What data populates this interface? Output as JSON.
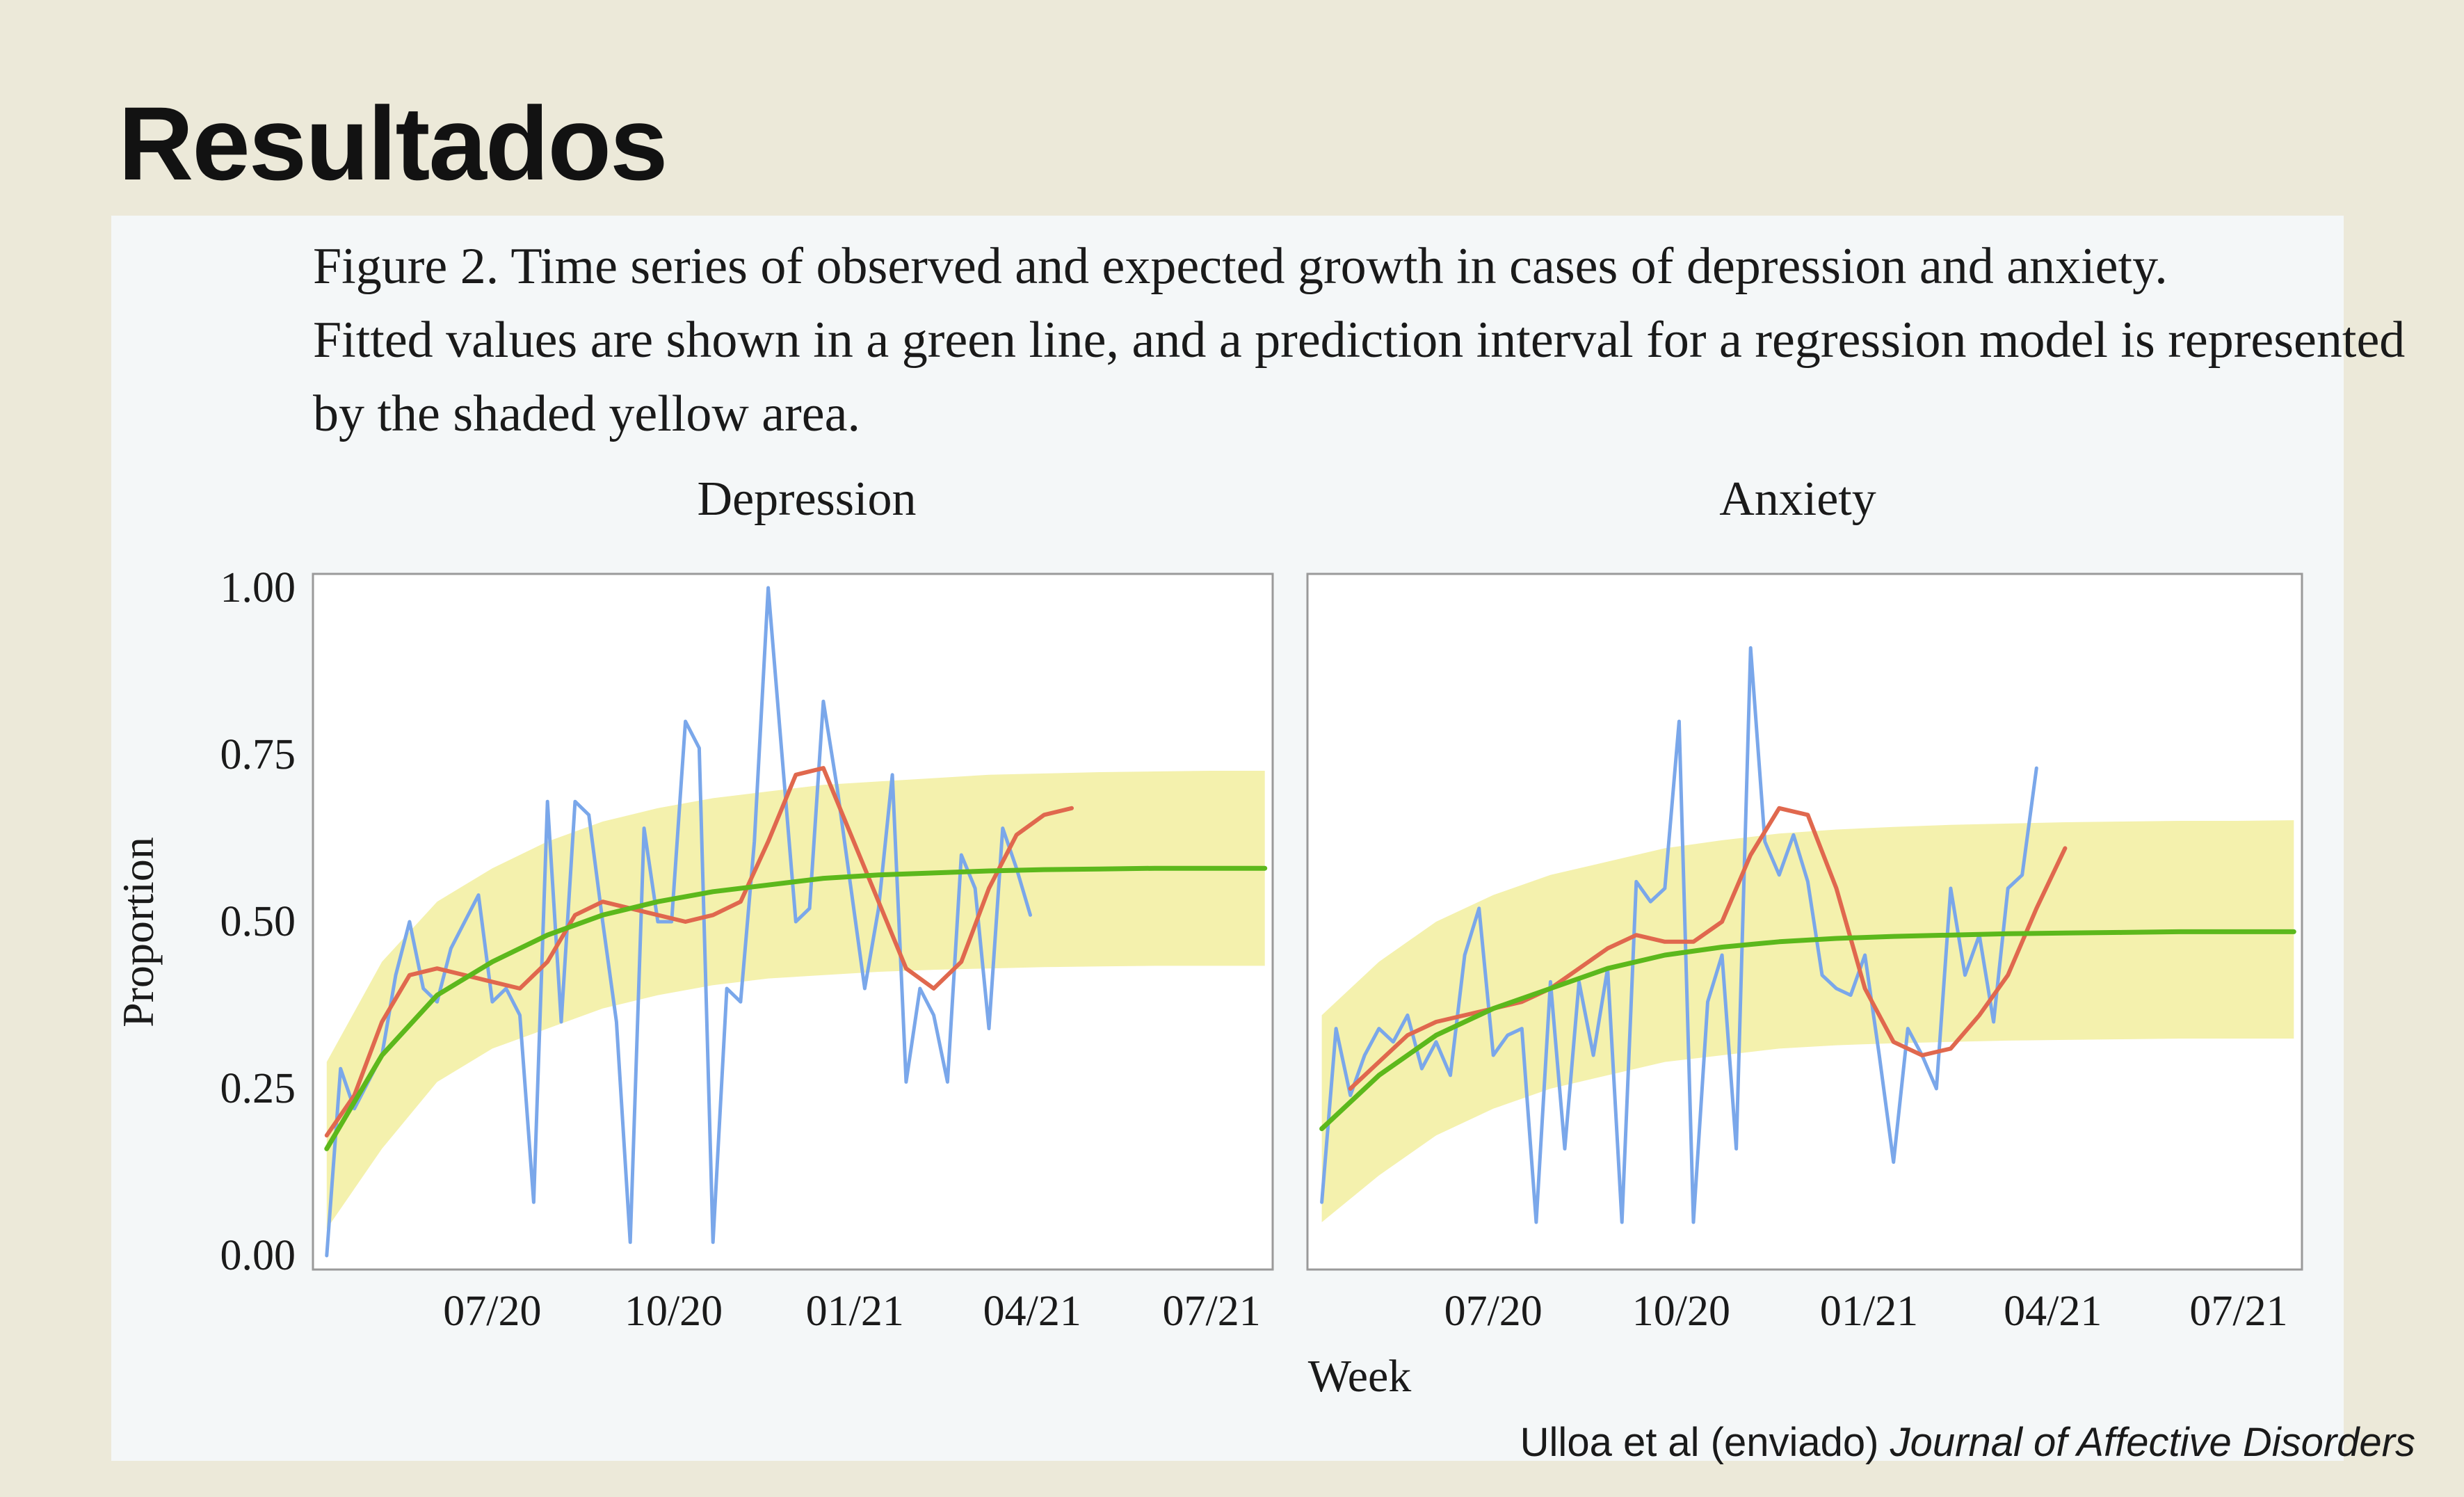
{
  "slide": {
    "title": "Resultados",
    "caption": [
      "Figure 2. Time series of observed and expected growth in cases of depression and anxiety.",
      "Fitted values are shown in a green line, and a prediction interval for a regression model is represented",
      "by the shaded yellow area."
    ],
    "citation_authors": "Ulloa et al (enviado) ",
    "citation_journal": "Journal of Affective Disorders"
  },
  "colors": {
    "observed": "#7aa7ea",
    "smoothed": "#e0684e",
    "fitted": "#5cb81c",
    "interval": "#f3efa4"
  },
  "chart_data": {
    "type": "line",
    "xlabel": "Week",
    "ylabel": "Proportion",
    "ylim": [
      0,
      1
    ],
    "yticks": [
      "0.00",
      "0.25",
      "0.50",
      "0.75",
      "1.00"
    ],
    "xticks": [
      "07/20",
      "10/20",
      "01/21",
      "04/21",
      "07/21"
    ],
    "xlim": [
      "2020-04-01",
      "2021-08-01"
    ],
    "legend": "none",
    "panels": [
      {
        "title": "Depression",
        "observed": {
          "dates": [
            "2020-04-08",
            "2020-04-15",
            "2020-04-22",
            "2020-04-29",
            "2020-05-06",
            "2020-05-13",
            "2020-05-20",
            "2020-05-27",
            "2020-06-03",
            "2020-06-10",
            "2020-06-17",
            "2020-06-24",
            "2020-07-01",
            "2020-07-08",
            "2020-07-15",
            "2020-07-22",
            "2020-07-29",
            "2020-08-05",
            "2020-08-12",
            "2020-08-19",
            "2020-08-26",
            "2020-09-02",
            "2020-09-09",
            "2020-09-16",
            "2020-09-23",
            "2020-09-30",
            "2020-10-07",
            "2020-10-14",
            "2020-10-21",
            "2020-10-28",
            "2020-11-04",
            "2020-11-11",
            "2020-11-18",
            "2020-11-25",
            "2020-12-02",
            "2020-12-09",
            "2020-12-16",
            "2020-12-23",
            "2020-12-30",
            "2021-01-06",
            "2021-01-13",
            "2021-01-20",
            "2021-01-27",
            "2021-02-03",
            "2021-02-10",
            "2021-02-17",
            "2021-02-24",
            "2021-03-03",
            "2021-03-10",
            "2021-03-17",
            "2021-03-24",
            "2021-03-31",
            "2021-04-07",
            "2021-04-14",
            "2021-04-21",
            "2021-04-28",
            "2021-05-05",
            "2021-05-12"
          ],
          "values": [
            0.0,
            0.28,
            0.22,
            0.26,
            0.3,
            0.42,
            0.5,
            0.4,
            0.38,
            0.46,
            0.5,
            0.54,
            0.38,
            0.4,
            0.36,
            0.08,
            0.68,
            0.35,
            0.68,
            0.66,
            0.5,
            0.35,
            0.02,
            0.64,
            0.5,
            0.5,
            0.8,
            0.76,
            0.02,
            0.4,
            0.38,
            0.62,
            1.0,
            0.75,
            0.5,
            0.52,
            0.83,
            0.7,
            0.55,
            0.4,
            0.52,
            0.72,
            0.26,
            0.4,
            0.36,
            0.26,
            0.6,
            0.55,
            0.34,
            0.64,
            0.58,
            0.51,
            null,
            null,
            null,
            null,
            null,
            null
          ]
        },
        "smoothed": {
          "dates": [
            "2020-04-08",
            "2020-04-22",
            "2020-05-06",
            "2020-05-20",
            "2020-06-03",
            "2020-06-17",
            "2020-07-01",
            "2020-07-15",
            "2020-07-29",
            "2020-08-12",
            "2020-08-26",
            "2020-09-09",
            "2020-09-23",
            "2020-10-07",
            "2020-10-21",
            "2020-11-04",
            "2020-11-18",
            "2020-12-02",
            "2020-12-16",
            "2020-12-30",
            "2021-01-13",
            "2021-01-27",
            "2021-02-10",
            "2021-02-24",
            "2021-03-10",
            "2021-03-24",
            "2021-04-07",
            "2021-04-21"
          ],
          "values": [
            0.18,
            0.24,
            0.35,
            0.42,
            0.43,
            0.42,
            0.41,
            0.4,
            0.44,
            0.51,
            0.53,
            0.52,
            0.51,
            0.5,
            0.51,
            0.53,
            0.62,
            0.72,
            0.73,
            0.63,
            0.53,
            0.43,
            0.4,
            0.44,
            0.55,
            0.63,
            0.66,
            0.67
          ]
        },
        "fitted": {
          "dates": [
            "2020-04-08",
            "2020-05-06",
            "2020-06-03",
            "2020-07-01",
            "2020-07-29",
            "2020-08-26",
            "2020-09-23",
            "2020-10-21",
            "2020-11-18",
            "2020-12-16",
            "2021-01-13",
            "2021-02-10",
            "2021-03-10",
            "2021-04-07",
            "2021-05-05",
            "2021-06-02",
            "2021-06-30",
            "2021-07-28"
          ],
          "values": [
            0.16,
            0.3,
            0.39,
            0.44,
            0.48,
            0.51,
            0.53,
            0.545,
            0.555,
            0.565,
            0.57,
            0.573,
            0.576,
            0.578,
            0.579,
            0.58,
            0.58,
            0.58
          ]
        },
        "interval_lower": [
          0.04,
          0.16,
          0.26,
          0.31,
          0.34,
          0.37,
          0.39,
          0.405,
          0.415,
          0.42,
          0.425,
          0.428,
          0.43,
          0.432,
          0.433,
          0.434,
          0.434,
          0.434
        ],
        "interval_upper": [
          0.29,
          0.44,
          0.53,
          0.58,
          0.62,
          0.65,
          0.67,
          0.685,
          0.695,
          0.705,
          0.71,
          0.715,
          0.72,
          0.722,
          0.724,
          0.725,
          0.726,
          0.726
        ]
      },
      {
        "title": "Anxiety",
        "observed": {
          "dates": [
            "2020-04-08",
            "2020-04-15",
            "2020-04-22",
            "2020-04-29",
            "2020-05-06",
            "2020-05-13",
            "2020-05-20",
            "2020-05-27",
            "2020-06-03",
            "2020-06-10",
            "2020-06-17",
            "2020-06-24",
            "2020-07-01",
            "2020-07-08",
            "2020-07-15",
            "2020-07-22",
            "2020-07-29",
            "2020-08-05",
            "2020-08-12",
            "2020-08-19",
            "2020-08-26",
            "2020-09-02",
            "2020-09-09",
            "2020-09-16",
            "2020-09-23",
            "2020-09-30",
            "2020-10-07",
            "2020-10-14",
            "2020-10-21",
            "2020-10-28",
            "2020-11-04",
            "2020-11-11",
            "2020-11-18",
            "2020-11-25",
            "2020-12-02",
            "2020-12-09",
            "2020-12-16",
            "2020-12-23",
            "2020-12-30",
            "2021-01-06",
            "2021-01-13",
            "2021-01-20",
            "2021-01-27",
            "2021-02-03",
            "2021-02-10",
            "2021-02-17",
            "2021-02-24",
            "2021-03-03",
            "2021-03-10",
            "2021-03-17",
            "2021-03-24",
            "2021-03-31",
            "2021-04-07",
            "2021-04-14",
            "2021-04-21",
            "2021-04-28"
          ],
          "values": [
            0.08,
            0.34,
            0.24,
            0.3,
            0.34,
            0.32,
            0.36,
            0.28,
            0.32,
            0.27,
            0.45,
            0.52,
            0.3,
            0.33,
            0.34,
            0.05,
            0.41,
            0.16,
            0.41,
            0.3,
            0.43,
            0.05,
            0.56,
            0.53,
            0.55,
            0.8,
            0.05,
            0.38,
            0.45,
            0.16,
            0.91,
            0.62,
            0.57,
            0.63,
            0.56,
            0.42,
            0.4,
            0.39,
            0.45,
            0.3,
            0.14,
            0.34,
            0.3,
            0.25,
            0.55,
            0.42,
            0.48,
            0.35,
            0.55,
            0.57,
            0.73,
            null,
            null,
            null,
            null,
            null
          ]
        },
        "smoothed": {
          "dates": [
            "2020-04-22",
            "2020-05-06",
            "2020-05-20",
            "2020-06-03",
            "2020-06-17",
            "2020-07-01",
            "2020-07-15",
            "2020-07-29",
            "2020-08-12",
            "2020-08-26",
            "2020-09-09",
            "2020-09-23",
            "2020-10-07",
            "2020-10-21",
            "2020-11-04",
            "2020-11-18",
            "2020-12-02",
            "2020-12-16",
            "2020-12-30",
            "2021-01-13",
            "2021-01-27",
            "2021-02-10",
            "2021-02-24",
            "2021-03-10",
            "2021-03-24",
            "2021-04-07"
          ],
          "values": [
            0.25,
            0.29,
            0.33,
            0.35,
            0.36,
            0.37,
            0.38,
            0.4,
            0.43,
            0.46,
            0.48,
            0.47,
            0.47,
            0.5,
            0.6,
            0.67,
            0.66,
            0.55,
            0.4,
            0.32,
            0.3,
            0.31,
            0.36,
            0.42,
            0.52,
            0.61
          ]
        },
        "fitted": {
          "dates": [
            "2020-04-08",
            "2020-05-06",
            "2020-06-03",
            "2020-07-01",
            "2020-07-29",
            "2020-08-26",
            "2020-09-23",
            "2020-10-21",
            "2020-11-18",
            "2020-12-16",
            "2021-01-13",
            "2021-02-10",
            "2021-03-10",
            "2021-04-07",
            "2021-05-05",
            "2021-06-02",
            "2021-06-30",
            "2021-07-28"
          ],
          "values": [
            0.19,
            0.27,
            0.33,
            0.37,
            0.4,
            0.43,
            0.45,
            0.462,
            0.47,
            0.475,
            0.478,
            0.48,
            0.482,
            0.483,
            0.484,
            0.485,
            0.485,
            0.485
          ]
        },
        "interval_lower": [
          0.05,
          0.12,
          0.18,
          0.22,
          0.25,
          0.27,
          0.29,
          0.3,
          0.31,
          0.315,
          0.318,
          0.32,
          0.322,
          0.323,
          0.324,
          0.325,
          0.325,
          0.325
        ],
        "interval_upper": [
          0.36,
          0.44,
          0.5,
          0.54,
          0.57,
          0.59,
          0.61,
          0.622,
          0.632,
          0.638,
          0.642,
          0.645,
          0.647,
          0.649,
          0.65,
          0.651,
          0.651,
          0.652
        ]
      }
    ]
  }
}
